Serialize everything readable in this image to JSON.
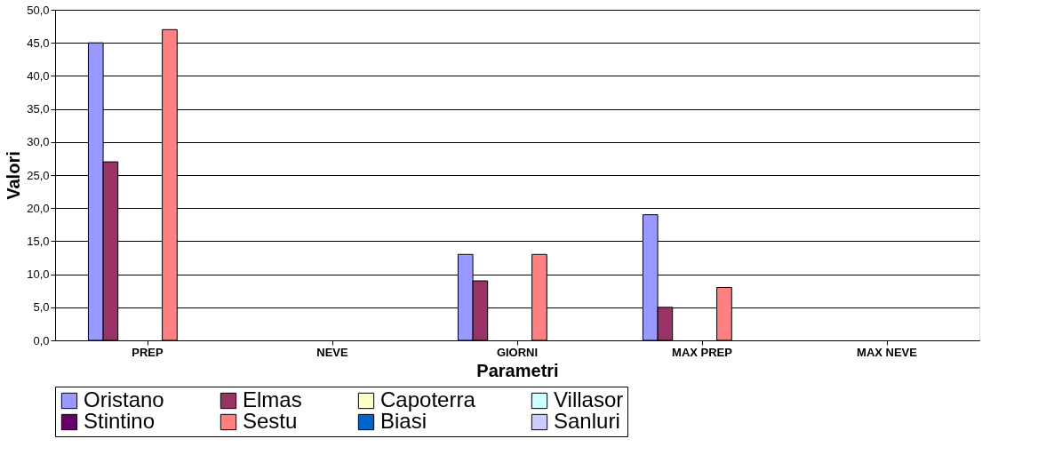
{
  "chart_data": {
    "type": "bar",
    "xlabel": "Parametri",
    "ylabel": "Valori",
    "categories": [
      "PREP",
      "NEVE",
      "GIORNI",
      "MAX PREP",
      "MAX NEVE"
    ],
    "series": [
      {
        "name": "Oristano",
        "color": "#9999ff",
        "values": [
          45,
          null,
          13,
          19,
          null
        ]
      },
      {
        "name": "Elmas",
        "color": "#993366",
        "values": [
          27,
          null,
          9,
          5,
          null
        ]
      },
      {
        "name": "Capoterra",
        "color": "#ffffcc",
        "values": [
          null,
          null,
          null,
          null,
          null
        ]
      },
      {
        "name": "Villasor",
        "color": "#ccffff",
        "values": [
          null,
          null,
          null,
          null,
          null
        ]
      },
      {
        "name": "Stintino",
        "color": "#660066",
        "values": [
          null,
          null,
          null,
          null,
          null
        ]
      },
      {
        "name": "Sestu",
        "color": "#ff8080",
        "values": [
          47,
          null,
          13,
          8,
          null
        ]
      },
      {
        "name": "Biasi",
        "color": "#0066cc",
        "values": [
          null,
          null,
          null,
          null,
          null
        ]
      },
      {
        "name": "Sanluri",
        "color": "#ccccff",
        "values": [
          null,
          null,
          null,
          null,
          null
        ]
      }
    ],
    "ylim": [
      0,
      50
    ],
    "yticks": [
      {
        "value": 0,
        "label": "0,0"
      },
      {
        "value": 5,
        "label": "5,0"
      },
      {
        "value": 10,
        "label": "10,0"
      },
      {
        "value": 15,
        "label": "15,0"
      },
      {
        "value": 20,
        "label": "20,0"
      },
      {
        "value": 25,
        "label": "25,0"
      },
      {
        "value": 30,
        "label": "30,0"
      },
      {
        "value": 35,
        "label": "35,0"
      },
      {
        "value": 40,
        "label": "40,0"
      },
      {
        "value": 45,
        "label": "45,0"
      },
      {
        "value": 50,
        "label": "50,0"
      }
    ],
    "grid": "y",
    "legend": "bottom"
  }
}
